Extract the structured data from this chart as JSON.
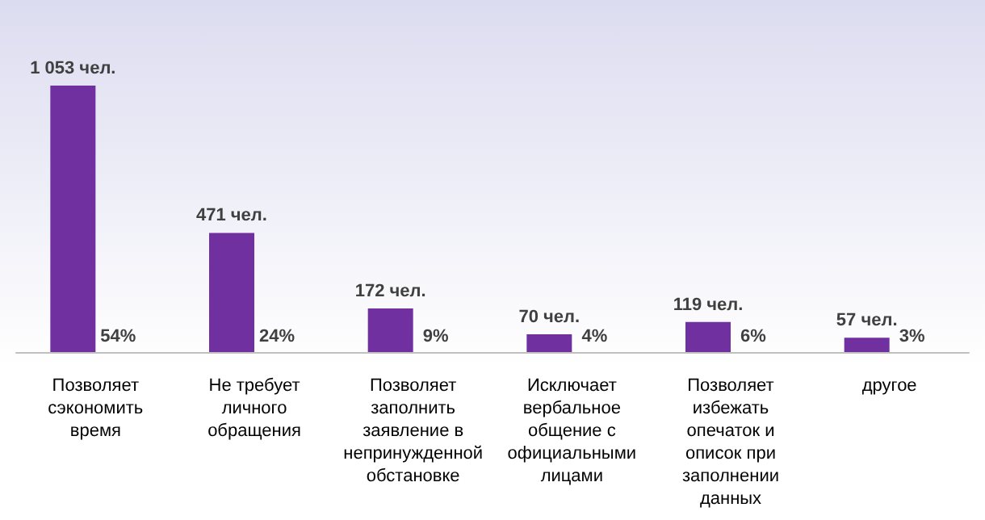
{
  "chart_data": {
    "type": "bar",
    "categories": [
      "Позволяет сэкономить время",
      "Не требует личного обращения",
      "Позволяет заполнить заявление в непринужденной обстановке",
      "Исключает вербальное общение с официальными лицами",
      "Позволяет избежать опечаток и описок при заполнении данных",
      "другое"
    ],
    "values": [
      1053,
      471,
      172,
      70,
      119,
      57
    ],
    "value_labels": [
      "1 053 чел.",
      "471 чел.",
      "172 чел.",
      "70 чел.",
      "119 чел.",
      "57 чел."
    ],
    "color": "#7030a0",
    "annotations": [
      {
        "text": "54%",
        "x": "Позволяет сэкономить время",
        "y": 0
      },
      {
        "text": "24%",
        "x": "Не требует личного обращения",
        "y": 0
      },
      {
        "text": "9%",
        "x": "Позволяет заполнить заявление в непринужденной обстановке",
        "y": 0
      },
      {
        "text": "4%",
        "x": "Исключает вербальное общение с официальными лицами",
        "y": 0
      },
      {
        "text": "6%",
        "x": "Позволяет избежать опечаток и описок при заполнении данных",
        "y": 0
      },
      {
        "text": "3%",
        "x": "другое",
        "y": 0
      }
    ],
    "tick_labels": "x",
    "grid": false
  }
}
